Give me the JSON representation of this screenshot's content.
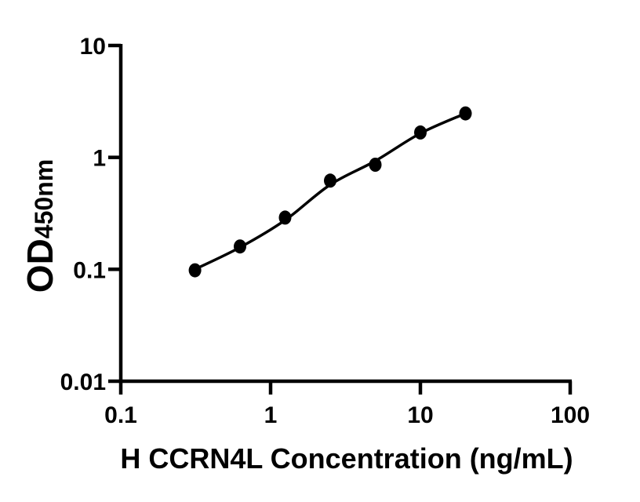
{
  "figure": {
    "background_color": "#ffffff",
    "ink_color": "#000000"
  },
  "chart_data": {
    "type": "scatter",
    "subtype": "standard-curve-log-log",
    "title": "",
    "xlabel": "H CCRN4L Concentration (ng/mL)",
    "ylabel_main": "OD",
    "ylabel_sub": "450nm",
    "x_scale": "log",
    "y_scale": "log",
    "xlim": [
      0.1,
      100
    ],
    "ylim": [
      0.01,
      10
    ],
    "grid": "off",
    "legend": "none",
    "x_axis": {
      "ticks": [
        {
          "value": 0.1,
          "label": "0.1"
        },
        {
          "value": 1,
          "label": "1"
        },
        {
          "value": 10,
          "label": "10"
        },
        {
          "value": 100,
          "label": "100"
        }
      ]
    },
    "y_axis": {
      "ticks": [
        {
          "value": 10,
          "label": "10"
        },
        {
          "value": 1,
          "label": "1"
        },
        {
          "value": 0.1,
          "label": "0.1"
        },
        {
          "value": 0.01,
          "label": "0.01"
        }
      ]
    },
    "points": [
      {
        "conc": 0.313,
        "od": 0.098
      },
      {
        "conc": 0.625,
        "od": 0.16
      },
      {
        "conc": 1.25,
        "od": 0.29
      },
      {
        "conc": 2.5,
        "od": 0.62
      },
      {
        "conc": 5,
        "od": 0.86
      },
      {
        "conc": 10,
        "od": 1.67
      },
      {
        "conc": 20,
        "od": 2.47
      }
    ],
    "fit_curve_od": [
      0.1,
      0.157,
      0.275,
      0.57,
      0.93,
      1.64,
      2.47
    ],
    "marker": "filled-circle",
    "marker_color": "#000000",
    "line_color": "#000000"
  }
}
